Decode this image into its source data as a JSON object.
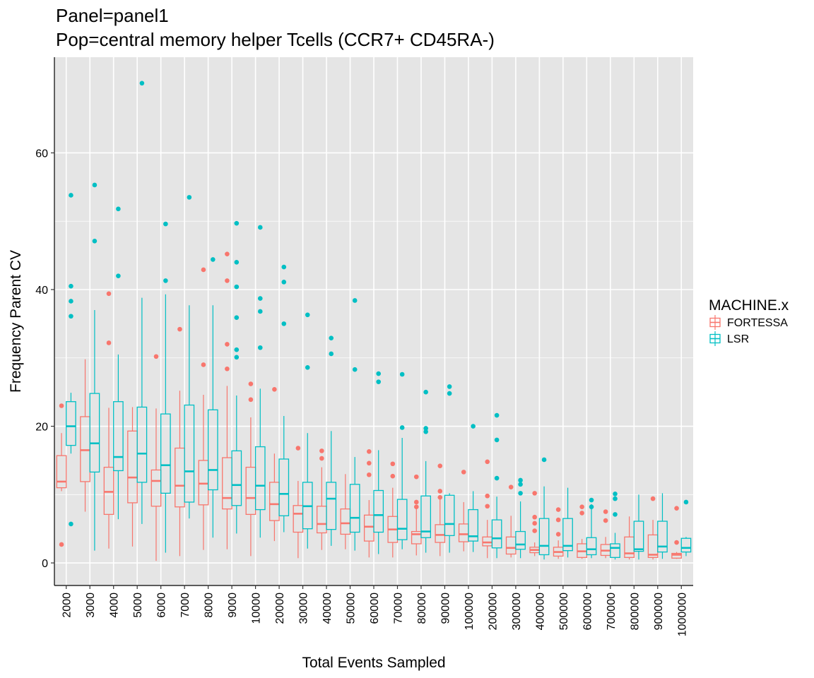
{
  "chart_data": {
    "type": "boxplot",
    "title": "Panel=panel1",
    "subtitle": "Pop=central memory helper Tcells (CCR7+ CD45RA-)",
    "xlabel": "Total Events Sampled",
    "ylabel": "Frequency Parent CV",
    "ylim": [
      -3.3,
      74
    ],
    "yticks": [
      0,
      20,
      40,
      60
    ],
    "grid": true,
    "legend": {
      "title": "MACHINE.x",
      "position": "right"
    },
    "colors": {
      "FORTESSA": "#F8766D",
      "LSR": "#00BFC4",
      "panel": "#E5E5E5",
      "grid": "#FFFFFF"
    },
    "categories": [
      "2000",
      "3000",
      "4000",
      "5000",
      "6000",
      "7000",
      "8000",
      "9000",
      "10000",
      "20000",
      "30000",
      "40000",
      "50000",
      "60000",
      "70000",
      "80000",
      "90000",
      "100000",
      "200000",
      "300000",
      "400000",
      "500000",
      "600000",
      "700000",
      "800000",
      "900000",
      "1000000"
    ],
    "series": [
      {
        "name": "FORTESSA",
        "boxes": [
          {
            "q1": 11.0,
            "median": 11.9,
            "q3": 15.7,
            "lo": 10.5,
            "hi": 19.0,
            "out": [
              23.0,
              2.7
            ]
          },
          {
            "q1": 11.9,
            "median": 16.5,
            "q3": 21.4,
            "lo": 7.5,
            "hi": 29.8,
            "out": []
          },
          {
            "q1": 7.1,
            "median": 10.4,
            "q3": 14.0,
            "lo": 2.1,
            "hi": 22.7,
            "out": [
              39.4,
              32.2
            ]
          },
          {
            "q1": 8.8,
            "median": 12.5,
            "q3": 19.3,
            "lo": 2.4,
            "hi": 22.8,
            "out": []
          },
          {
            "q1": 8.3,
            "median": 12.0,
            "q3": 13.6,
            "lo": 0.3,
            "hi": 22.6,
            "out": [
              30.2
            ]
          },
          {
            "q1": 8.2,
            "median": 11.3,
            "q3": 16.8,
            "lo": 1.0,
            "hi": 25.2,
            "out": [
              34.2
            ]
          },
          {
            "q1": 8.5,
            "median": 11.6,
            "q3": 15.0,
            "lo": 1.9,
            "hi": 24.6,
            "out": [
              42.9,
              29.0
            ]
          },
          {
            "q1": 7.9,
            "median": 9.5,
            "q3": 15.4,
            "lo": 2.0,
            "hi": 25.9,
            "out": [
              45.2,
              41.3,
              32.0,
              28.4
            ]
          },
          {
            "q1": 7.1,
            "median": 9.5,
            "q3": 14.0,
            "lo": 1.0,
            "hi": 21.3,
            "out": [
              26.2,
              23.9
            ]
          },
          {
            "q1": 6.2,
            "median": 8.6,
            "q3": 11.8,
            "lo": 3.2,
            "hi": 16.0,
            "out": [
              25.4
            ]
          },
          {
            "q1": 4.5,
            "median": 7.2,
            "q3": 8.4,
            "lo": 0.7,
            "hi": 12.0,
            "out": [
              16.8
            ]
          },
          {
            "q1": 4.4,
            "median": 5.7,
            "q3": 8.3,
            "lo": 1.9,
            "hi": 14.0,
            "out": [
              16.4,
              15.3
            ]
          },
          {
            "q1": 4.2,
            "median": 5.8,
            "q3": 7.9,
            "lo": 2.0,
            "hi": 13.0,
            "out": []
          },
          {
            "q1": 3.2,
            "median": 5.3,
            "q3": 7.0,
            "lo": 0.8,
            "hi": 9.2,
            "out": [
              16.3,
              14.6,
              12.9
            ]
          },
          {
            "q1": 3.0,
            "median": 4.9,
            "q3": 6.8,
            "lo": 0.8,
            "hi": 11.0,
            "out": [
              14.5,
              12.7
            ]
          },
          {
            "q1": 2.8,
            "median": 4.2,
            "q3": 4.6,
            "lo": 1.1,
            "hi": 8.0,
            "out": [
              12.6,
              8.9,
              8.2
            ]
          },
          {
            "q1": 3.0,
            "median": 4.1,
            "q3": 5.6,
            "lo": 1.0,
            "hi": 9.3,
            "out": [
              14.2,
              10.5,
              9.6
            ]
          },
          {
            "q1": 3.1,
            "median": 4.2,
            "q3": 5.7,
            "lo": 1.7,
            "hi": 8.9,
            "out": [
              13.3
            ]
          },
          {
            "q1": 2.5,
            "median": 3.0,
            "q3": 3.8,
            "lo": 0.7,
            "hi": 6.3,
            "out": [
              14.8,
              9.8,
              8.3
            ]
          },
          {
            "q1": 1.3,
            "median": 2.2,
            "q3": 3.8,
            "lo": 0.8,
            "hi": 6.9,
            "out": [
              11.1
            ]
          },
          {
            "q1": 1.5,
            "median": 1.9,
            "q3": 2.3,
            "lo": 1.0,
            "hi": 3.0,
            "out": [
              10.2,
              6.7,
              5.8,
              4.7
            ]
          },
          {
            "q1": 1.0,
            "median": 1.6,
            "q3": 2.3,
            "lo": 0.6,
            "hi": 3.3,
            "out": [
              7.8,
              6.3,
              4.2
            ]
          },
          {
            "q1": 0.8,
            "median": 1.7,
            "q3": 2.8,
            "lo": 0.6,
            "hi": 3.5,
            "out": [
              8.2,
              7.3
            ]
          },
          {
            "q1": 1.1,
            "median": 1.8,
            "q3": 2.7,
            "lo": 0.7,
            "hi": 3.8,
            "out": [
              7.5,
              6.2
            ]
          },
          {
            "q1": 0.8,
            "median": 1.4,
            "q3": 3.8,
            "lo": 0.5,
            "hi": 6.8,
            "out": []
          },
          {
            "q1": 0.8,
            "median": 1.2,
            "q3": 4.1,
            "lo": 0.5,
            "hi": 6.3,
            "out": [
              9.4
            ]
          },
          {
            "q1": 0.7,
            "median": 1.2,
            "q3": 1.4,
            "lo": 0.6,
            "hi": 1.6,
            "out": [
              8.0,
              3.0
            ]
          }
        ]
      },
      {
        "name": "LSR",
        "boxes": [
          {
            "q1": 17.2,
            "median": 20.0,
            "q3": 23.6,
            "lo": 16.0,
            "hi": 24.9,
            "out": [
              53.8,
              40.5,
              38.3,
              36.1,
              5.7
            ]
          },
          {
            "q1": 13.3,
            "median": 17.5,
            "q3": 24.8,
            "lo": 1.8,
            "hi": 37.0,
            "out": [
              55.3,
              47.1
            ]
          },
          {
            "q1": 13.5,
            "median": 15.5,
            "q3": 23.6,
            "lo": 6.4,
            "hi": 30.5,
            "out": [
              51.8,
              42.0
            ]
          },
          {
            "q1": 11.8,
            "median": 16.0,
            "q3": 22.8,
            "lo": 5.7,
            "hi": 38.8,
            "out": [
              70.2
            ]
          },
          {
            "q1": 10.2,
            "median": 14.3,
            "q3": 21.8,
            "lo": 1.5,
            "hi": 39.3,
            "out": [
              49.6,
              41.3
            ]
          },
          {
            "q1": 8.9,
            "median": 13.4,
            "q3": 23.1,
            "lo": 6.5,
            "hi": 37.7,
            "out": [
              53.5
            ]
          },
          {
            "q1": 10.7,
            "median": 13.6,
            "q3": 22.4,
            "lo": 3.7,
            "hi": 37.7,
            "out": [
              44.4
            ]
          },
          {
            "q1": 8.4,
            "median": 11.4,
            "q3": 16.4,
            "lo": 4.3,
            "hi": 24.5,
            "out": [
              49.7,
              44.0,
              40.4,
              35.9,
              31.2,
              30.1
            ]
          },
          {
            "q1": 7.8,
            "median": 11.3,
            "q3": 17.0,
            "lo": 3.7,
            "hi": 25.5,
            "out": [
              49.1,
              38.7,
              36.8,
              31.5
            ]
          },
          {
            "q1": 6.9,
            "median": 10.1,
            "q3": 15.2,
            "lo": 4.5,
            "hi": 21.5,
            "out": [
              43.3,
              41.1,
              35.0
            ]
          },
          {
            "q1": 5.0,
            "median": 8.3,
            "q3": 11.8,
            "lo": 2.1,
            "hi": 19.0,
            "out": [
              36.3,
              28.6
            ]
          },
          {
            "q1": 4.9,
            "median": 9.4,
            "q3": 11.8,
            "lo": 2.5,
            "hi": 19.3,
            "out": [
              32.9,
              30.6
            ]
          },
          {
            "q1": 4.5,
            "median": 6.6,
            "q3": 11.5,
            "lo": 1.8,
            "hi": 15.5,
            "out": [
              38.4,
              28.3
            ]
          },
          {
            "q1": 4.5,
            "median": 7.0,
            "q3": 10.6,
            "lo": 1.3,
            "hi": 16.5,
            "out": [
              27.7,
              26.5
            ]
          },
          {
            "q1": 3.4,
            "median": 5.0,
            "q3": 9.3,
            "lo": 2.0,
            "hi": 18.3,
            "out": [
              27.6,
              19.8
            ]
          },
          {
            "q1": 3.7,
            "median": 4.6,
            "q3": 9.8,
            "lo": 1.5,
            "hi": 14.9,
            "out": [
              25.0,
              19.7,
              19.2
            ]
          },
          {
            "q1": 4.0,
            "median": 5.7,
            "q3": 9.9,
            "lo": 1.5,
            "hi": 10.2,
            "out": [
              25.8,
              24.8
            ]
          },
          {
            "q1": 3.2,
            "median": 3.9,
            "q3": 7.8,
            "lo": 1.6,
            "hi": 10.5,
            "out": [
              20.0
            ]
          },
          {
            "q1": 2.2,
            "median": 3.6,
            "q3": 6.3,
            "lo": 0.7,
            "hi": 9.7,
            "out": [
              21.6,
              18.0,
              12.4
            ]
          },
          {
            "q1": 2.0,
            "median": 2.7,
            "q3": 4.6,
            "lo": 0.7,
            "hi": 9.0,
            "out": [
              12.1,
              11.5,
              10.2
            ]
          },
          {
            "q1": 1.2,
            "median": 2.5,
            "q3": 6.5,
            "lo": 0.5,
            "hi": 11.2,
            "out": [
              15.1
            ]
          },
          {
            "q1": 1.8,
            "median": 2.5,
            "q3": 6.5,
            "lo": 0.8,
            "hi": 11.0,
            "out": []
          },
          {
            "q1": 1.2,
            "median": 2.0,
            "q3": 3.7,
            "lo": 0.7,
            "hi": 8.6,
            "out": [
              9.2,
              8.2
            ]
          },
          {
            "q1": 0.8,
            "median": 2.2,
            "q3": 2.8,
            "lo": 0.5,
            "hi": 4.4,
            "out": [
              10.1,
              9.4,
              7.1
            ]
          },
          {
            "q1": 1.7,
            "median": 2.0,
            "q3": 6.1,
            "lo": 0.5,
            "hi": 10.0,
            "out": []
          },
          {
            "q1": 1.6,
            "median": 2.4,
            "q3": 6.1,
            "lo": 0.6,
            "hi": 10.2,
            "out": []
          },
          {
            "q1": 1.6,
            "median": 2.2,
            "q3": 3.6,
            "lo": 1.0,
            "hi": 3.8,
            "out": [
              8.9
            ]
          }
        ]
      }
    ]
  }
}
